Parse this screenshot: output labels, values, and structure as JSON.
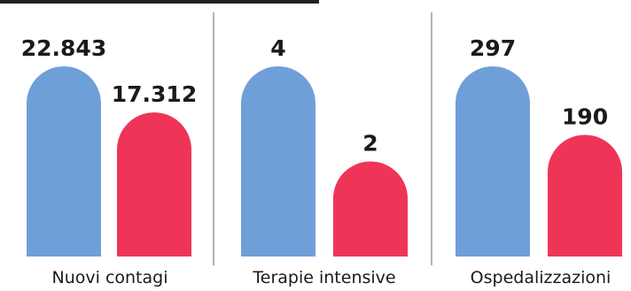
{
  "chart_data": {
    "type": "bar",
    "categories": [
      "Nuovi contagi",
      "Terapie intensive",
      "Ospedalizzazioni"
    ],
    "series": [
      {
        "color": "#6f9fd8",
        "values": [
          22843,
          4,
          297
        ],
        "labels": [
          "22.843",
          "4",
          "297"
        ]
      },
      {
        "color": "#ef3557",
        "values": [
          17312,
          2,
          190
        ],
        "labels": [
          "17.312",
          "2",
          "190"
        ]
      }
    ],
    "grid": false,
    "legend": "none",
    "independent_scales": true
  }
}
